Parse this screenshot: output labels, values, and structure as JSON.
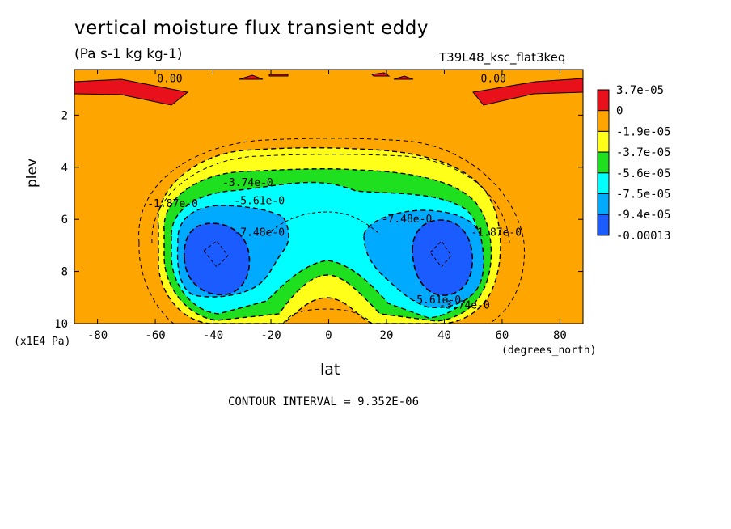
{
  "chart_data": {
    "type": "contour",
    "title": "vertical moisture flux transient eddy",
    "units": "(Pa s-1 kg kg-1)",
    "run_label": "T39L48_ksc_flat3keq",
    "xlabel": "lat",
    "x_units": "(degrees_north)",
    "ylabel": "plev",
    "y_units": "(x1E4 Pa)",
    "xlim": [
      -88,
      88
    ],
    "ylim": [
      10,
      0.25
    ],
    "x_ticks": [
      -80,
      -60,
      -40,
      -20,
      0,
      20,
      40,
      60,
      80
    ],
    "y_ticks": [
      2,
      4,
      6,
      8,
      10
    ],
    "contour_interval": "CONTOUR INTERVAL = 9.352E-06",
    "legend": [
      {
        "label": "3.7e-05",
        "color": "#e8101a"
      },
      {
        "label": "0",
        "color": "#ffa500"
      },
      {
        "label": "-1.9e-05",
        "color": "#ffff1a"
      },
      {
        "label": "-3.7e-05",
        "color": "#1ee01e"
      },
      {
        "label": "-5.6e-05",
        "color": "#00ffff"
      },
      {
        "label": "-7.5e-05",
        "color": "#00aaff"
      },
      {
        "label": "-9.4e-05",
        "color": "#1a5cff"
      },
      {
        "label": "-0.00013",
        "color": ""
      }
    ],
    "contour_labels": [
      {
        "text": "0.00",
        "lat": -55,
        "plev": 0.6
      },
      {
        "text": "0.00",
        "lat": 57,
        "plev": 0.6
      },
      {
        "text": "-3.74e-0",
        "lat": -28,
        "plev": 4.6
      },
      {
        "text": "-5.61e-0",
        "lat": -24,
        "plev": 5.3
      },
      {
        "text": "-1.87e-0",
        "lat": -54,
        "plev": 5.4
      },
      {
        "text": "-7.48e-0",
        "lat": -24,
        "plev": 6.5
      },
      {
        "text": "-7.48e-0",
        "lat": 27,
        "plev": 6.0
      },
      {
        "text": "-1.87e-0",
        "lat": 58,
        "plev": 6.5
      },
      {
        "text": "-5.61e-0",
        "lat": 37,
        "plev": 9.1
      },
      {
        "text": "-3.74e-0",
        "lat": 47,
        "plev": 9.3
      }
    ],
    "minima": [
      {
        "lat": -38,
        "plev": 7.3,
        "value_approx": -0.00011
      },
      {
        "lat": 38,
        "plev": 7.3,
        "value_approx": -0.00011
      }
    ]
  }
}
